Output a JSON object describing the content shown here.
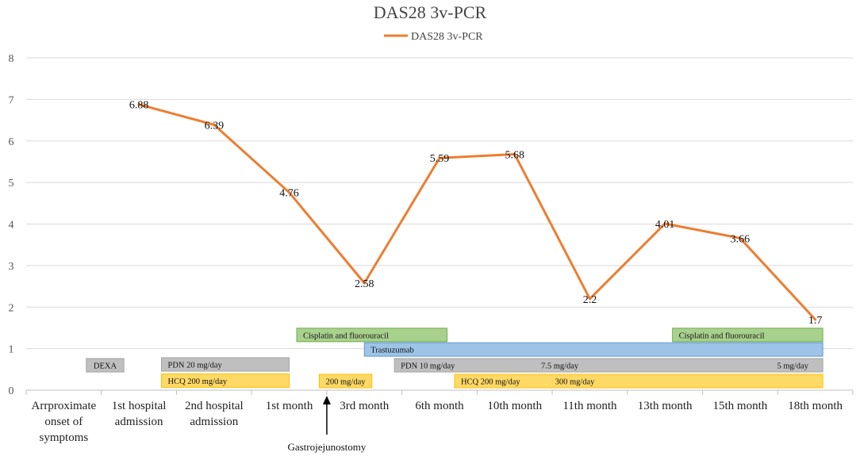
{
  "chart_data": {
    "type": "line",
    "title": "DAS28 3v-PCR",
    "xlabel": "",
    "ylabel": "",
    "ylim": [
      0,
      8
    ],
    "yticks": [
      0,
      1,
      2,
      3,
      4,
      5,
      6,
      7,
      8
    ],
    "grid": true,
    "legend_position": "top-center",
    "categories": [
      "Arrproximate onset of symptoms",
      "1st hospital admission",
      "2nd hospital admission",
      "1st month",
      "3rd month",
      "6th month",
      "10th month",
      "11th month",
      "13th month",
      "15th month",
      "18th month"
    ],
    "category_lines": [
      [
        "Arrproximate",
        "onset of",
        "symptoms"
      ],
      [
        "1st hospital",
        "admission"
      ],
      [
        "2nd hospital",
        "admission"
      ],
      [
        "1st month"
      ],
      [
        "3rd month"
      ],
      [
        "6th month"
      ],
      [
        "10th month"
      ],
      [
        "11th month"
      ],
      [
        "13th month"
      ],
      [
        "15th month"
      ],
      [
        "18th month"
      ]
    ],
    "series": [
      {
        "name": "DAS28 3v-PCR",
        "color": "#ED7D31",
        "values": [
          null,
          6.88,
          6.39,
          4.76,
          2.58,
          5.59,
          5.68,
          2.2,
          4.01,
          3.66,
          1.7
        ],
        "labels": [
          "",
          "6.88",
          "6.39",
          "4.76",
          "2.58",
          "5.59",
          "5.68",
          "2.2",
          "4.01",
          "3.66",
          "1.7"
        ]
      }
    ],
    "annotations": [
      {
        "type": "arrow",
        "text": "Gastrojejunostomy",
        "x_between": [
          3,
          4
        ]
      }
    ],
    "treatment_bars": [
      {
        "label": "Cisplatin and fluorouracil",
        "start": 3.6,
        "end": 5.6,
        "level": 1.33,
        "color": "#A9D18E",
        "border": "#70AD47"
      },
      {
        "label": "Cisplatin and fluorouracil",
        "start": 8.6,
        "end": 10.6,
        "level": 1.33,
        "color": "#A9D18E",
        "border": "#70AD47"
      },
      {
        "label": "Trastuzumab",
        "start": 4.5,
        "end": 10.6,
        "level": 0.98,
        "color": "#9DC3E6",
        "border": "#5B9BD5"
      },
      {
        "label": "DEXA",
        "start": 0.8,
        "end": 1.3,
        "level": 0.6,
        "color": "#BFBFBF",
        "border": "#A5A5A5"
      },
      {
        "label": "PDN 20 mg/day",
        "start": 1.8,
        "end": 3.5,
        "level": 0.62,
        "color": "#BFBFBF",
        "border": "#A5A5A5"
      },
      {
        "label": "PDN 10 mg/day",
        "start": 4.9,
        "end": 10.6,
        "level": 0.6,
        "color": "#BFBFBF",
        "border": "#A5A5A5",
        "sublabels": [
          {
            "text": "7.5 mg/day",
            "at": 7.1
          },
          {
            "text": "5 mg/day",
            "at": 10.2
          }
        ]
      },
      {
        "label": "HCQ 200 mg/day",
        "start": 1.8,
        "end": 3.5,
        "level": 0.23,
        "color": "#FFD966",
        "border": "#FFC000"
      },
      {
        "label": "200 mg/day",
        "start": 3.9,
        "end": 4.6,
        "level": 0.22,
        "color": "#FFD966",
        "border": "#FFC000"
      },
      {
        "label": "HCQ 200 mg/day",
        "start": 5.7,
        "end": 10.6,
        "level": 0.22,
        "color": "#FFD966",
        "border": "#FFC000",
        "sublabels": [
          {
            "text": "300 mg/day",
            "at": 7.3
          }
        ]
      }
    ]
  }
}
